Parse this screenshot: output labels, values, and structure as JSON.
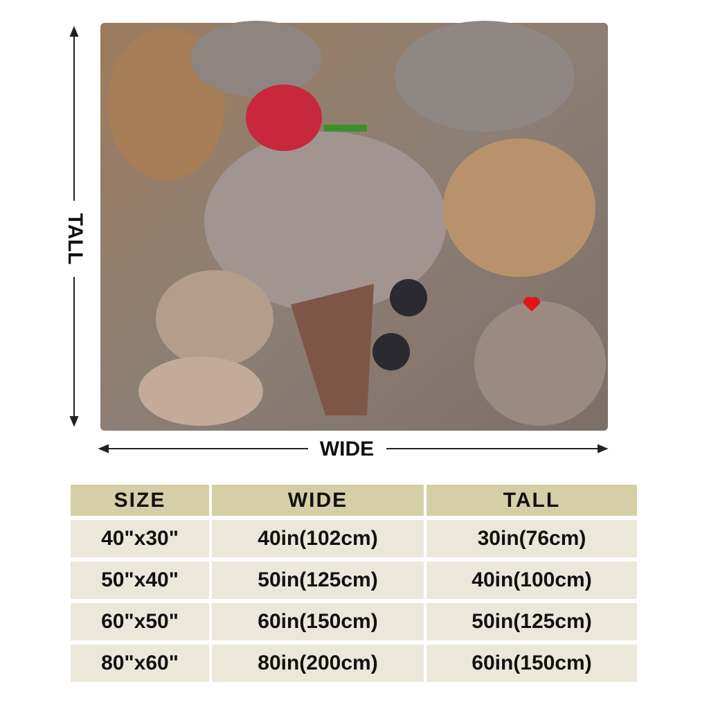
{
  "dimensions": {
    "height_label": "TALL",
    "width_label": "WIDE"
  },
  "table": {
    "header": [
      "SIZE",
      "WIDE",
      "TALL"
    ],
    "rows": [
      [
        "40\"x30\"",
        "40in(102cm)",
        "30in(76cm)"
      ],
      [
        "50\"x40\"",
        "50in(125cm)",
        "40in(100cm)"
      ],
      [
        "60\"x50\"",
        "60in(150cm)",
        "50in(125cm)"
      ],
      [
        "80\"x60\"",
        "80in(200cm)",
        "60in(150cm)"
      ]
    ]
  }
}
